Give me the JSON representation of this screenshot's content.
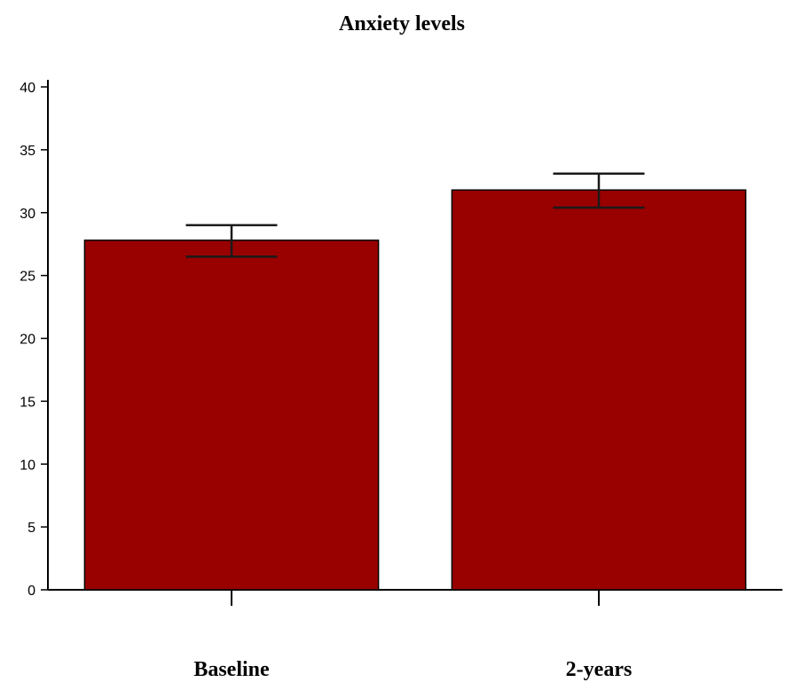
{
  "chart_data": {
    "type": "bar",
    "title": "Anxiety levels",
    "xlabel": "",
    "ylabel": "",
    "categories": [
      "Baseline",
      "2-years"
    ],
    "values": [
      27.8,
      31.8
    ],
    "error_low": [
      26.5,
      30.4
    ],
    "error_high": [
      29.0,
      33.1
    ],
    "ylim": [
      0,
      40
    ],
    "yticks": [
      "0",
      "5",
      "10",
      "15",
      "20",
      "25",
      "30",
      "35",
      "40"
    ],
    "grid": false,
    "legend": "none",
    "bar_color": "#990000"
  }
}
